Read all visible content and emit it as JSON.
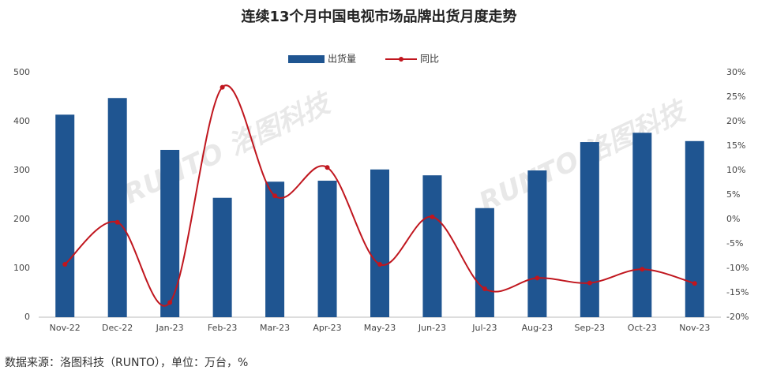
{
  "chart_data": {
    "type": "bar",
    "title": "连续13个月中国电视市场品牌出货月度走势",
    "categories": [
      "Nov-22",
      "Dec-22",
      "Jan-23",
      "Feb-23",
      "Mar-23",
      "Apr-23",
      "May-23",
      "Jun-23",
      "Jul-23",
      "Aug-23",
      "Sep-23",
      "Oct-23",
      "Nov-23"
    ],
    "series": [
      {
        "name": "出货量",
        "color": "#1f5591",
        "type": "bar",
        "values": [
          414,
          448,
          342,
          244,
          277,
          279,
          302,
          290,
          223,
          300,
          358,
          377,
          360
        ]
      },
      {
        "name": "同比",
        "color": "#c0161e",
        "type": "line",
        "axis": "y2",
        "values": [
          -9.2,
          -0.6,
          -17,
          27,
          4.8,
          10.6,
          -9.2,
          0.5,
          -14.2,
          -12,
          -13,
          -10.2,
          -13.1
        ]
      }
    ],
    "ylim": [
      0,
      500
    ],
    "yticks": [
      0,
      100,
      200,
      300,
      400,
      500
    ],
    "y2lim": [
      -20,
      30
    ],
    "y2ticks": [
      {
        "value": -20,
        "label": "-20%"
      },
      {
        "value": -15,
        "label": "-15%"
      },
      {
        "value": -10,
        "label": "-10%"
      },
      {
        "value": -5,
        "label": "-5%"
      },
      {
        "value": 0,
        "label": "0%"
      },
      {
        "value": 5,
        "label": "5%"
      },
      {
        "value": 10,
        "label": "10%"
      },
      {
        "value": 15,
        "label": "15%"
      },
      {
        "value": 20,
        "label": "20%"
      },
      {
        "value": 25,
        "label": "25%"
      },
      {
        "value": 30,
        "label": "30%"
      }
    ],
    "watermark": "RUNTO 洛图科技",
    "source": "数据来源：洛图科技（RUNTO），单位：万台，%"
  }
}
